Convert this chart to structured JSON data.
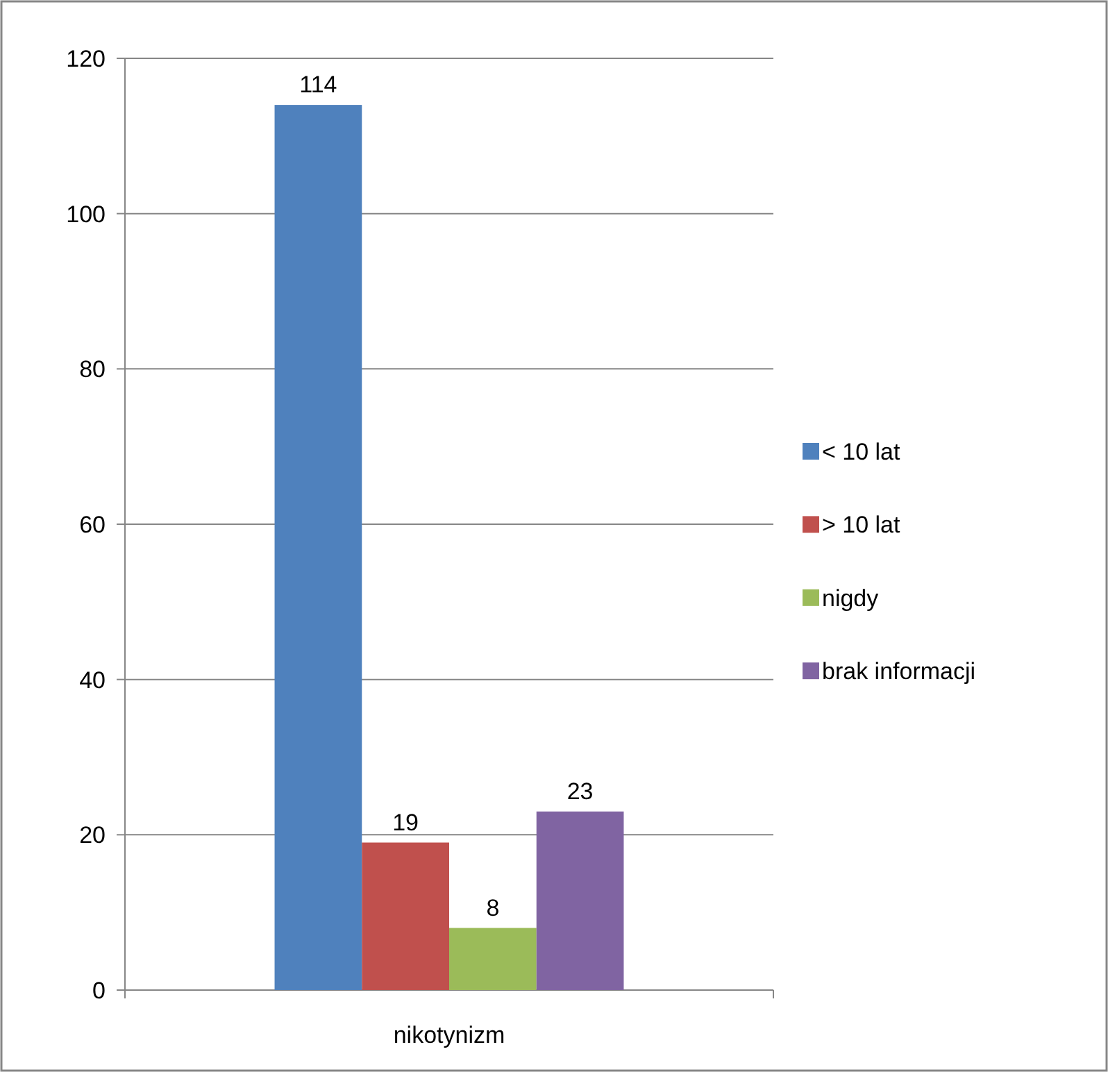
{
  "chart_data": {
    "type": "bar",
    "categories": [
      "nikotynizm"
    ],
    "series": [
      {
        "name": "< 10 lat",
        "color": "#4f81bd",
        "values": [
          114
        ]
      },
      {
        "name": "> 10 lat",
        "color": "#c0504d",
        "values": [
          19
        ]
      },
      {
        "name": "nigdy",
        "color": "#9bbb59",
        "values": [
          8
        ]
      },
      {
        "name": "brak informacji",
        "color": "#8064a2",
        "values": [
          23
        ]
      }
    ],
    "ylim": [
      0,
      120
    ],
    "yticks": [
      0,
      20,
      40,
      60,
      80,
      100,
      120
    ],
    "grid": "y",
    "legend": "right",
    "data_labels": true
  }
}
